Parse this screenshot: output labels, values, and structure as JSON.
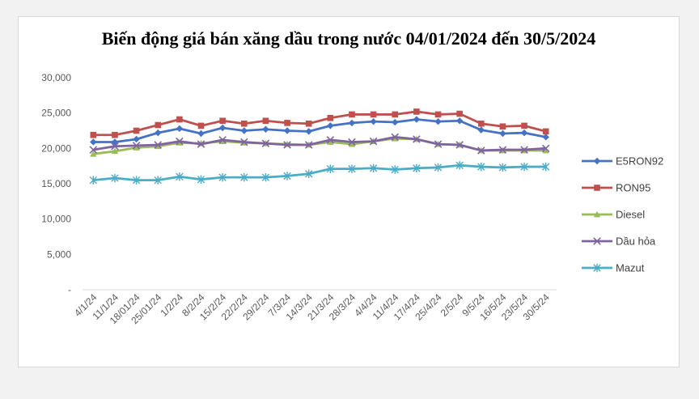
{
  "chart_data": {
    "type": "line",
    "title": "Biến động giá bán xăng dầu trong nước 04/01/2024 đến 30/5/2024",
    "xlabel": "",
    "ylabel": "",
    "ylim": [
      0,
      30000
    ],
    "yticks": [
      "-",
      "5,000",
      "10,000",
      "15,000",
      "20,000",
      "25,000",
      "30,000"
    ],
    "ytick_values": [
      0,
      5000,
      10000,
      15000,
      20000,
      25000,
      30000
    ],
    "grid": false,
    "legend": "right",
    "categories": [
      "4/1/24",
      "11/1/24",
      "18/01/24",
      "25/01/24",
      "1/2/24",
      "8/2/24",
      "15/2/24",
      "22/2/24",
      "29/2/24",
      "7/3/24",
      "14/3/24",
      "21/3/24",
      "28/3/24",
      "4/4/24",
      "11/4/24",
      "17/4/24",
      "25/4/24",
      "2/5/24",
      "9/5/24",
      "16/5/24",
      "23/5/24",
      "30/5/24"
    ],
    "series": [
      {
        "name": "E5RON92",
        "color": "#4472c4",
        "marker": "diamond",
        "values": [
          20900,
          20900,
          21300,
          22200,
          22800,
          22100,
          22900,
          22500,
          22700,
          22500,
          22400,
          23200,
          23600,
          23800,
          23700,
          24100,
          23800,
          23900,
          22600,
          22100,
          22200,
          21600
        ]
      },
      {
        "name": "RON95",
        "color": "#c0504d",
        "marker": "square",
        "values": [
          21900,
          21900,
          22500,
          23300,
          24100,
          23200,
          23900,
          23500,
          23900,
          23600,
          23500,
          24300,
          24800,
          24800,
          24800,
          25200,
          24800,
          24900,
          23500,
          23100,
          23200,
          22400
        ]
      },
      {
        "name": "Diesel",
        "color": "#9bbb59",
        "marker": "triangle",
        "values": [
          19200,
          19600,
          20100,
          20300,
          20800,
          20700,
          21000,
          20800,
          20700,
          20600,
          20500,
          20900,
          20600,
          21000,
          21400,
          21300,
          20600,
          20500,
          19700,
          19700,
          19700,
          19700
        ]
      },
      {
        "name": "Dầu hỏa",
        "color": "#8064a2",
        "marker": "x",
        "values": [
          19800,
          20300,
          20400,
          20500,
          21000,
          20600,
          21200,
          20900,
          20700,
          20500,
          20500,
          21200,
          20900,
          21000,
          21600,
          21300,
          20600,
          20500,
          19700,
          19800,
          19800,
          20000
        ]
      },
      {
        "name": "Mazut",
        "color": "#4bacc6",
        "marker": "star",
        "values": [
          15500,
          15800,
          15500,
          15500,
          16000,
          15600,
          15900,
          15900,
          15900,
          16100,
          16400,
          17100,
          17100,
          17200,
          17000,
          17200,
          17300,
          17600,
          17400,
          17300,
          17400,
          17400
        ]
      }
    ]
  }
}
